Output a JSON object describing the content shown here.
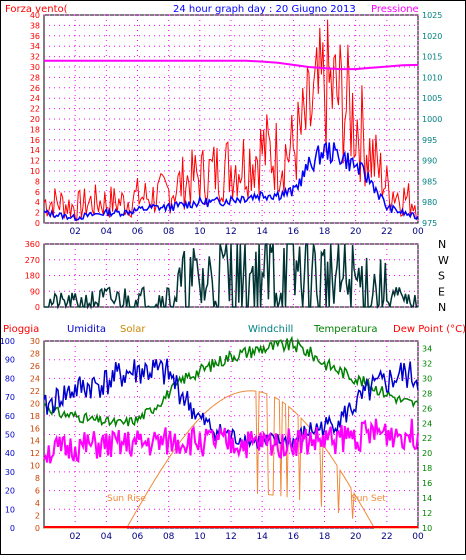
{
  "header": {
    "wind_label": "Forza vento(",
    "title": "24 hour graph day : 20 Giugno 2013",
    "pressure_label": "Pressione"
  },
  "time_ticks": [
    "02",
    "04",
    "06",
    "08",
    "10",
    "12",
    "14",
    "16",
    "18",
    "20",
    "22",
    "00"
  ],
  "colors": {
    "wind_gust": "#ff0000",
    "wind_avg": "#0000ff",
    "pressure": "#ff00ff",
    "direction": "#003333",
    "humidity": "#0000cc",
    "solar": "#ef8a3a",
    "temperature": "#008000",
    "dew_point": "#ff00ff",
    "rain": "#ff0000",
    "axis_left": "#ff0000",
    "axis_right": "#008080",
    "grid": "#ff00ff"
  },
  "chart_data": [
    {
      "type": "line",
      "panel": "wind-pressure",
      "title": "24 hour graph day : 20 Giugno 2013",
      "x": [
        0,
        1,
        2,
        3,
        4,
        5,
        6,
        7,
        8,
        9,
        10,
        11,
        12,
        13,
        14,
        15,
        16,
        17,
        18,
        19,
        20,
        21,
        22,
        23,
        24
      ],
      "series": [
        {
          "name": "Forza vento(",
          "axis": "left",
          "values": [
            4,
            4,
            3,
            4,
            4,
            4,
            5,
            5,
            6,
            8,
            9,
            10,
            11,
            12,
            14,
            13,
            14,
            20,
            26,
            24,
            20,
            13,
            7,
            5,
            4
          ]
        },
        {
          "name": "wind-average",
          "axis": "left",
          "values": [
            2,
            1.5,
            1,
            1.5,
            2,
            2,
            2.5,
            3,
            3,
            3.5,
            4,
            4,
            4.5,
            5,
            5.5,
            5.5,
            6,
            11,
            14,
            13,
            11,
            8,
            3,
            2,
            1
          ]
        },
        {
          "name": "Pressione",
          "axis": "right",
          "values": [
            1014,
            1014,
            1014,
            1014,
            1014,
            1014,
            1014,
            1014,
            1014,
            1014,
            1014,
            1014,
            1014,
            1014,
            1013.8,
            1013.5,
            1013,
            1012.5,
            1012.2,
            1012,
            1012,
            1012.3,
            1012.6,
            1012.9,
            1013
          ]
        }
      ],
      "y_left_ticks": [
        0,
        2,
        4,
        6,
        8,
        10,
        12,
        14,
        16,
        18,
        20,
        22,
        24,
        26,
        28,
        30,
        32,
        34,
        36,
        38,
        40
      ],
      "ylim_left": [
        0,
        40
      ],
      "y_right_ticks": [
        975,
        980,
        985,
        990,
        995,
        1000,
        1005,
        1010,
        1015,
        1020,
        1025
      ],
      "ylim_right": [
        975,
        1025
      ]
    },
    {
      "type": "line",
      "panel": "wind-direction",
      "x": [
        0,
        1,
        2,
        3,
        4,
        5,
        6,
        7,
        8,
        9,
        10,
        11,
        12,
        13,
        14,
        15,
        16,
        17,
        18,
        19,
        20,
        21,
        22,
        23,
        24
      ],
      "series": [
        {
          "name": "direction",
          "values": [
            25,
            25,
            25,
            30,
            40,
            40,
            40,
            40,
            50,
            110,
            130,
            150,
            160,
            170,
            180,
            190,
            200,
            160,
            150,
            140,
            130,
            120,
            80,
            30,
            20
          ]
        }
      ],
      "y_ticks": [
        0,
        90,
        180,
        270,
        360
      ],
      "ylim": [
        0,
        360
      ],
      "compass_labels": [
        "N",
        "W",
        "S",
        "E",
        "N"
      ]
    },
    {
      "type": "line",
      "panel": "environment",
      "labels": {
        "rain": "Pioggia",
        "humidity": "Umidita",
        "solar": "Solar",
        "windchill": "Windchill",
        "temperature": "Temperatura",
        "dew_point": "Dew Point (°C)",
        "sun_rise": "Sun Rise",
        "sun_set": "Sun Set"
      },
      "x": [
        0,
        1,
        2,
        3,
        4,
        5,
        6,
        7,
        8,
        9,
        10,
        11,
        12,
        13,
        14,
        15,
        16,
        17,
        18,
        19,
        20,
        21,
        22,
        23,
        24
      ],
      "series": [
        {
          "name": "Umidita",
          "axis": "humidity",
          "values": [
            64,
            70,
            74,
            76,
            78,
            82,
            84,
            84,
            82,
            70,
            58,
            52,
            49,
            47,
            46,
            46,
            46,
            52,
            54,
            58,
            66,
            74,
            78,
            82,
            80
          ]
        },
        {
          "name": "Temperatura",
          "axis": "temperature",
          "values": [
            26.5,
            25.3,
            25,
            24.5,
            24.2,
            24,
            24.5,
            26,
            28,
            30,
            31,
            32,
            33,
            33.5,
            34,
            34.3,
            34.5,
            33.5,
            32,
            31,
            30,
            29,
            28,
            27,
            26.5
          ]
        },
        {
          "name": "Dew Point (°C)",
          "axis": "temperature",
          "values": [
            20.2,
            20.4,
            20.7,
            21,
            21,
            21.1,
            21.2,
            21.3,
            21.5,
            21.6,
            21.6,
            21.5,
            21.3,
            21.2,
            21.3,
            21.4,
            21.5,
            21.6,
            21.7,
            22,
            22.3,
            22.6,
            22.8,
            22.6,
            22.5
          ]
        },
        {
          "name": "Solar",
          "axis": "solar",
          "values": [
            0,
            0,
            0,
            0,
            0,
            0,
            0,
            0,
            0,
            0,
            0,
            0,
            0,
            0,
            0,
            0,
            0,
            0,
            0,
            0,
            0,
            0,
            0,
            0,
            0
          ]
        },
        {
          "name": "Pioggia",
          "axis": "rain",
          "values": [
            0,
            0,
            0,
            0,
            0,
            0,
            0,
            0,
            0,
            0,
            0,
            0,
            0,
            0,
            0,
            0,
            0,
            0,
            0,
            0,
            0,
            0,
            0,
            0,
            0
          ]
        }
      ],
      "y_humidity_ticks": [
        0,
        10,
        20,
        30,
        40,
        50,
        60,
        70,
        80,
        90,
        100
      ],
      "y_solar_ticks": [
        0,
        2,
        4,
        6,
        8,
        10,
        12,
        14,
        16,
        18,
        20,
        22,
        24,
        26,
        28,
        30
      ],
      "y_temperature_ticks": [
        10,
        12,
        14,
        16,
        18,
        20,
        22,
        24,
        26,
        28,
        30,
        32,
        34
      ],
      "ylim_humidity": [
        0,
        100
      ],
      "ylim_solar": [
        0,
        30
      ],
      "ylim_temperature": [
        10,
        35
      ]
    }
  ]
}
